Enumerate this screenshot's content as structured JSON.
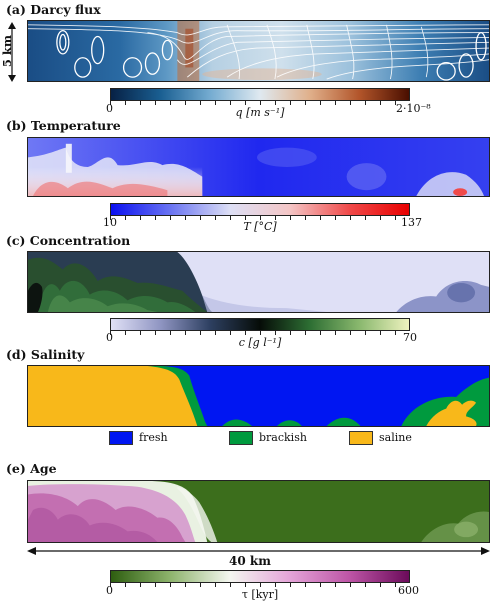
{
  "panels": {
    "a": {
      "title": "(a)  Darcy flux",
      "depth_label": "5 km"
    },
    "b": {
      "title": "(b)  Temperature"
    },
    "c": {
      "title": "(c)  Concentration"
    },
    "d": {
      "title": "(d)  Salinity"
    },
    "e": {
      "title": "(e)  Age",
      "width_label": "40 km"
    }
  },
  "colorbars": {
    "q": {
      "min": "0",
      "max": "2·10⁻⁸",
      "label": "q [m s⁻¹]",
      "colors": [
        "#072145",
        "#1a5f92",
        "#75acd1",
        "#dfe9f0",
        "#e0b08b",
        "#b2552a",
        "#4a0f00"
      ]
    },
    "T": {
      "min": "10",
      "max": "137",
      "label": "T [°C]",
      "colors": [
        "#0a10f0",
        "#6a74f2",
        "#dddff5",
        "#f4c6c6",
        "#f04a4a",
        "#e80000"
      ]
    },
    "c": {
      "min": "0",
      "max": "70",
      "label": "c [g l⁻¹]",
      "colors": [
        "#e0e0f6",
        "#8f95c2",
        "#2d3f60",
        "#060c08",
        "#2d6e33",
        "#8ab86e",
        "#eef2bf"
      ]
    },
    "tau": {
      "min": "0",
      "max": "600",
      "label": "τ [kyr]",
      "colors": [
        "#2e5e10",
        "#8eb46d",
        "#f4f6f0",
        "#e4a4d8",
        "#bd55a6",
        "#6b0b5a"
      ]
    }
  },
  "salinity_legend": {
    "fresh": {
      "label": "fresh",
      "color": "#0016f2"
    },
    "brackish": {
      "label": "brackish",
      "color": "#009a3e"
    },
    "saline": {
      "label": "saline",
      "color": "#f8b81a"
    }
  }
}
